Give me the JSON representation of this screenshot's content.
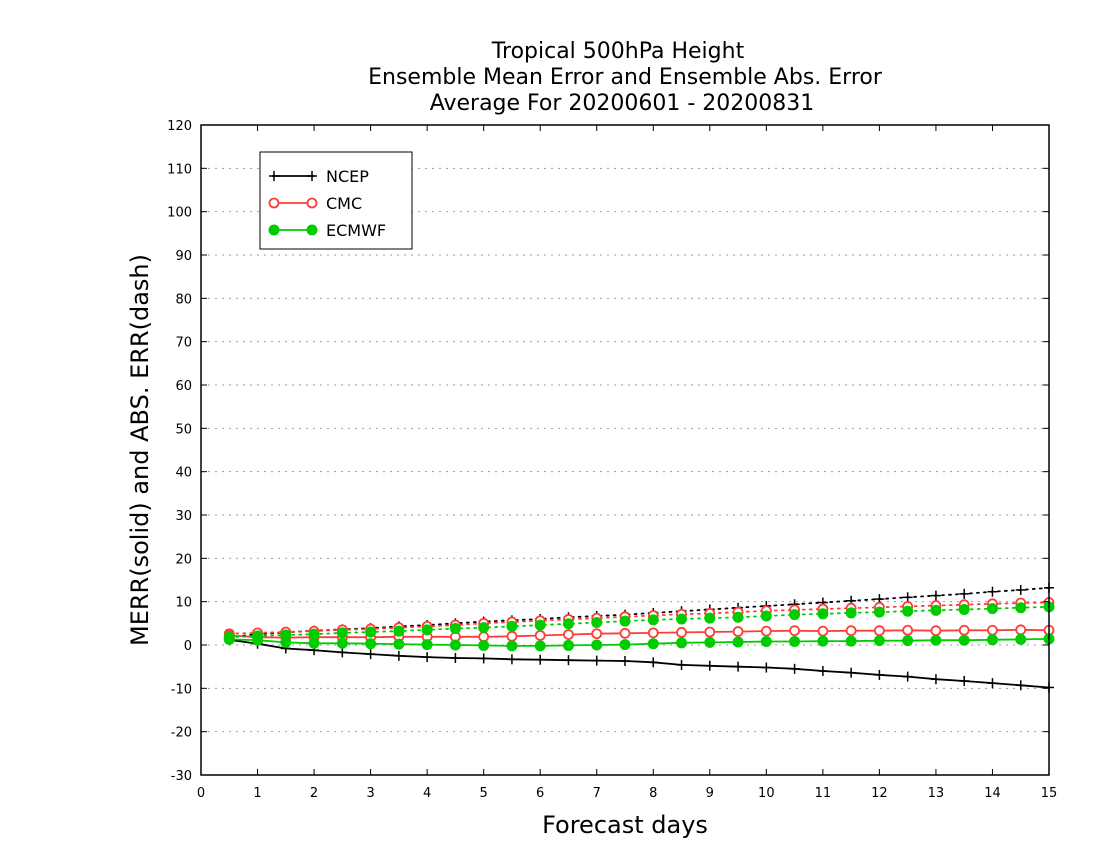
{
  "chart_data": {
    "type": "line",
    "title_lines": [
      "Tropical 500hPa Height",
      "Ensemble Mean Error and Ensemble Abs. Error",
      "Average For 20200601 - 20200831"
    ],
    "xlabel": "Forecast days",
    "ylabel": "MERR(solid) and ABS. ERR(dash)",
    "xlim": [
      0,
      15
    ],
    "ylim": [
      -30,
      120
    ],
    "x_ticks": [
      "0",
      "1",
      "2",
      "3",
      "4",
      "5",
      "6",
      "7",
      "8",
      "9",
      "10",
      "11",
      "12",
      "13",
      "14",
      "15"
    ],
    "y_ticks": [
      "120",
      "110",
      "100",
      "90",
      "80",
      "70",
      "60",
      "50",
      "40",
      "30",
      "20",
      "10",
      "0",
      "-10",
      "-20",
      "-30"
    ],
    "grid": "horizontal dotted",
    "legend_position": "top-left",
    "x": [
      0.5,
      1,
      1.5,
      2,
      2.5,
      3,
      3.5,
      4,
      4.5,
      5,
      5.5,
      6,
      6.5,
      7,
      7.5,
      8,
      8.5,
      9,
      9.5,
      10,
      10.5,
      11,
      11.5,
      12,
      12.5,
      13,
      13.5,
      14,
      14.5,
      15
    ],
    "series": [
      {
        "name": "NCEP",
        "color": "#000000",
        "marker": "plus",
        "merr": [
          1.2,
          0.3,
          -0.8,
          -1.2,
          -1.7,
          -2.1,
          -2.5,
          -2.8,
          -3.0,
          -3.1,
          -3.3,
          -3.4,
          -3.5,
          -3.6,
          -3.7,
          -4.0,
          -4.6,
          -4.8,
          -5.0,
          -5.2,
          -5.5,
          -6.0,
          -6.4,
          -6.9,
          -7.3,
          -7.9,
          -8.3,
          -8.8,
          -9.3,
          -9.8
        ],
        "abserr": [
          1.8,
          2.5,
          2.9,
          3.3,
          3.6,
          3.9,
          4.3,
          4.6,
          5.0,
          5.4,
          5.7,
          6.0,
          6.4,
          6.7,
          7.0,
          7.4,
          7.8,
          8.2,
          8.6,
          9.0,
          9.4,
          9.8,
          10.2,
          10.6,
          11.0,
          11.4,
          11.8,
          12.3,
          12.7,
          13.2
        ]
      },
      {
        "name": "CMC",
        "color": "#ff3b3b",
        "marker": "open-circle",
        "merr": [
          2.2,
          1.8,
          1.7,
          1.8,
          1.8,
          1.8,
          1.9,
          1.9,
          1.9,
          1.9,
          2.0,
          2.2,
          2.4,
          2.6,
          2.7,
          2.8,
          2.9,
          3.0,
          3.1,
          3.2,
          3.3,
          3.2,
          3.3,
          3.3,
          3.4,
          3.3,
          3.4,
          3.4,
          3.5,
          3.4
        ],
        "abserr": [
          2.6,
          2.8,
          3.0,
          3.2,
          3.5,
          3.7,
          4.0,
          4.3,
          4.6,
          5.0,
          5.3,
          5.6,
          5.9,
          6.2,
          6.5,
          6.8,
          7.1,
          7.3,
          7.6,
          7.9,
          8.1,
          8.3,
          8.5,
          8.7,
          8.9,
          9.1,
          9.3,
          9.5,
          9.7,
          9.8
        ]
      },
      {
        "name": "ECMWF",
        "color": "#00cc00",
        "marker": "filled-circle",
        "merr": [
          1.3,
          1.1,
          0.6,
          0.4,
          0.4,
          0.3,
          0.2,
          0.1,
          0.0,
          -0.1,
          -0.2,
          -0.2,
          -0.1,
          0.0,
          0.1,
          0.3,
          0.5,
          0.6,
          0.7,
          0.8,
          0.8,
          0.9,
          0.9,
          1.0,
          1.0,
          1.1,
          1.1,
          1.2,
          1.3,
          1.4
        ],
        "abserr": [
          1.8,
          2.1,
          2.3,
          2.5,
          2.8,
          3.0,
          3.2,
          3.5,
          3.8,
          4.0,
          4.3,
          4.6,
          4.9,
          5.2,
          5.5,
          5.8,
          6.0,
          6.2,
          6.4,
          6.7,
          7.0,
          7.2,
          7.4,
          7.6,
          7.8,
          8.0,
          8.2,
          8.4,
          8.6,
          8.8
        ]
      }
    ]
  }
}
